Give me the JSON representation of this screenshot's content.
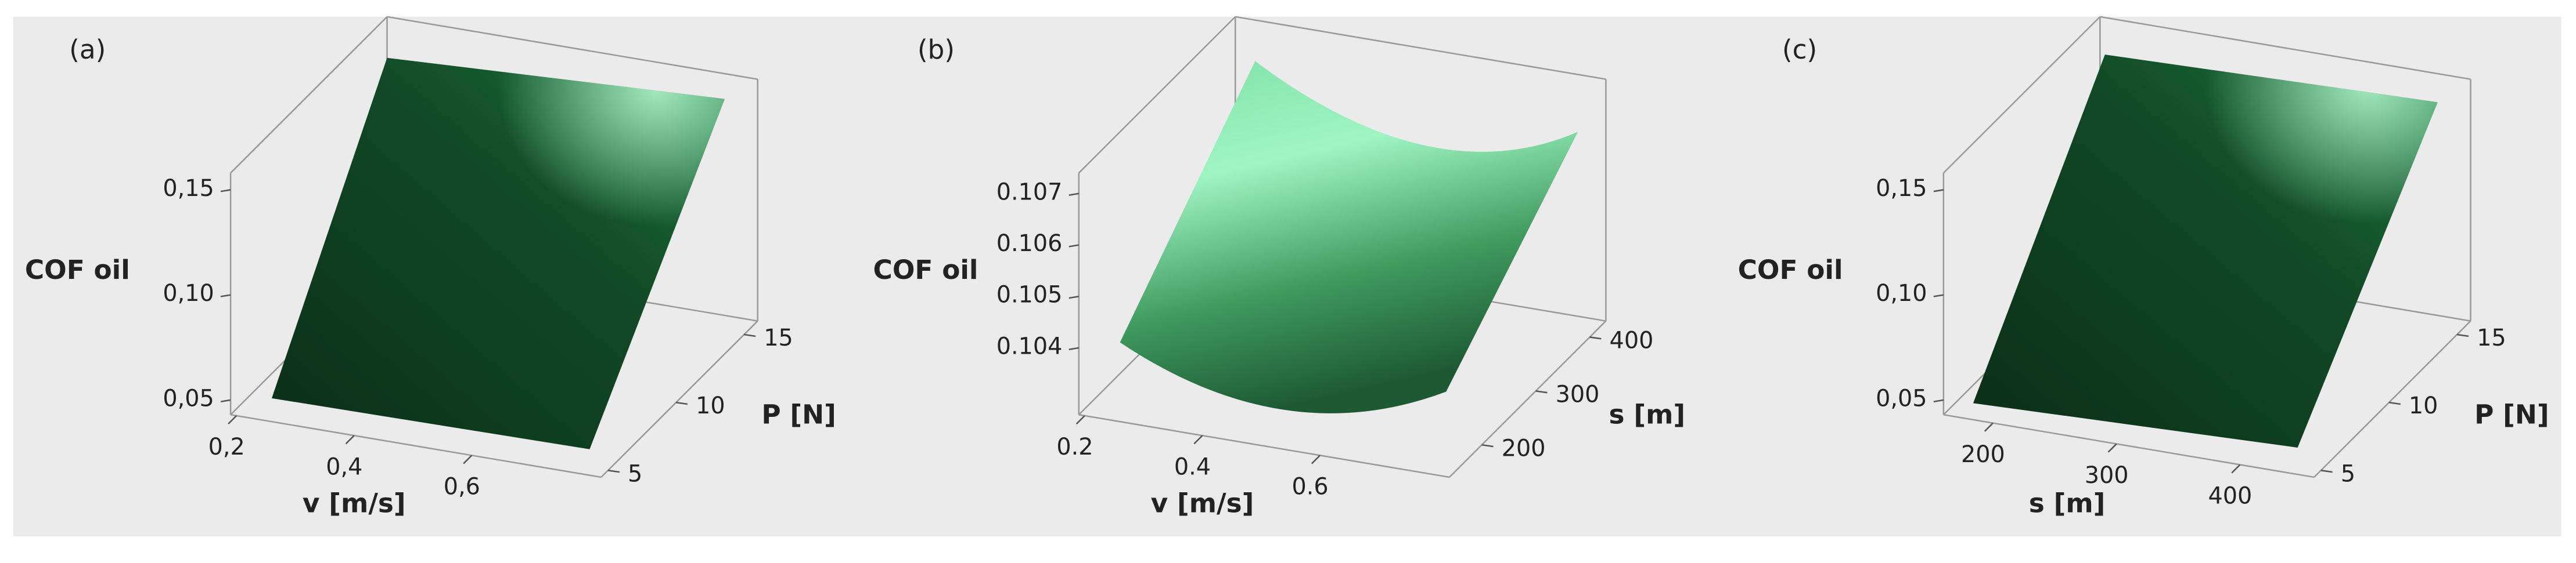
{
  "chart_data": [
    {
      "type": "surface",
      "panel_label": "(a)",
      "z_label": "COF oil",
      "x_label": "v [m/s]",
      "y_label": "P [N]",
      "xlim": [
        0.19,
        0.82
      ],
      "xticks": [
        {
          "value": 0.2,
          "label": "0,2"
        },
        {
          "value": 0.4,
          "label": "0,4"
        },
        {
          "value": 0.6,
          "label": "0,6"
        }
      ],
      "ylim": [
        4.5,
        16
      ],
      "yticks": [
        5,
        10,
        15
      ],
      "zlim": [
        0.043,
        0.158
      ],
      "zticks": [
        {
          "value": 0.05,
          "label": "0,05"
        },
        {
          "value": 0.1,
          "label": "0,10"
        },
        {
          "value": 0.15,
          "label": "0,15"
        }
      ]
    },
    {
      "type": "surface",
      "panel_label": "(b)",
      "z_label": "COF oil",
      "x_label": "v [m/s]",
      "y_label": "s [m]",
      "xlim": [
        0.19,
        0.82
      ],
      "xticks": [
        0.2,
        0.4,
        0.6
      ],
      "ylim": [
        140,
        430
      ],
      "yticks": [
        200,
        300,
        400
      ],
      "zlim": [
        0.1027,
        0.1074
      ],
      "zticks": [
        0.104,
        0.105,
        0.106,
        0.107
      ]
    },
    {
      "type": "surface",
      "panel_label": "(c)",
      "z_label": "COF oil",
      "x_label": "s [m]",
      "y_label": "P [N]",
      "xlim": [
        160,
        460
      ],
      "xticks": [
        200,
        300,
        400
      ],
      "ylim": [
        4.5,
        16
      ],
      "yticks": [
        5,
        10,
        15
      ],
      "zlim": [
        0.043,
        0.158
      ],
      "zticks": [
        {
          "value": 0.05,
          "label": "0,05"
        },
        {
          "value": 0.1,
          "label": "0,10"
        },
        {
          "value": 0.15,
          "label": "0,15"
        }
      ]
    }
  ]
}
